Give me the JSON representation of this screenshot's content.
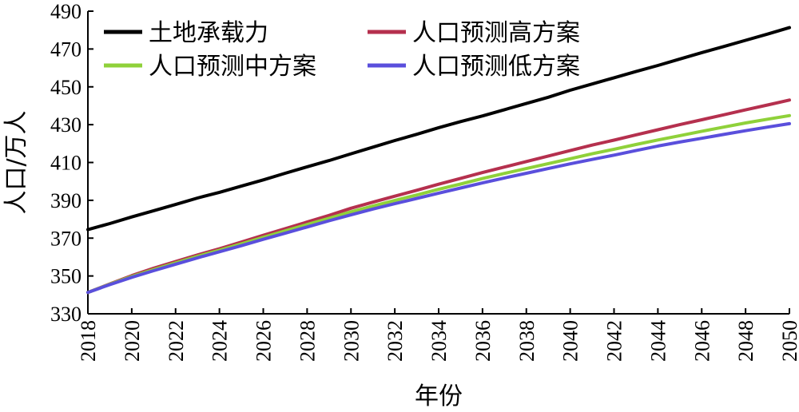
{
  "chart_data": {
    "type": "line",
    "title": "",
    "xlabel": "年份",
    "ylabel": "人口/万人",
    "xlim": [
      2018,
      2050
    ],
    "ylim": [
      330,
      490
    ],
    "yticks": [
      330,
      350,
      370,
      390,
      410,
      430,
      450,
      470,
      490
    ],
    "xticks": [
      2018,
      2020,
      2022,
      2024,
      2026,
      2028,
      2030,
      2032,
      2034,
      2036,
      2038,
      2040,
      2042,
      2044,
      2046,
      2048,
      2050
    ],
    "grid": false,
    "legend_position": "top",
    "x": [
      2018,
      2019,
      2020,
      2021,
      2022,
      2023,
      2024,
      2025,
      2026,
      2027,
      2028,
      2029,
      2030,
      2031,
      2032,
      2033,
      2034,
      2035,
      2036,
      2037,
      2038,
      2039,
      2040,
      2041,
      2042,
      2043,
      2044,
      2045,
      2046,
      2047,
      2048,
      2049,
      2050
    ],
    "series": [
      {
        "name": "土地承载力",
        "color": "#000000",
        "values": [
          374.5,
          377.7,
          381.2,
          384.5,
          387.8,
          391.2,
          394.2,
          397.5,
          400.8,
          404.3,
          407.7,
          411.0,
          414.6,
          418.1,
          421.6,
          424.9,
          428.4,
          431.6,
          434.6,
          437.9,
          441.2,
          444.5,
          448.2,
          451.5,
          454.8,
          458.1,
          461.3,
          464.7,
          468.1,
          471.3,
          474.6,
          477.9,
          481.3
        ]
      },
      {
        "name": "人口预测高方案",
        "color": "#b5304e",
        "values": [
          341.3,
          345.8,
          350.2,
          354.1,
          357.6,
          361.1,
          364.4,
          367.9,
          371.5,
          375.0,
          378.5,
          382.0,
          385.8,
          389.0,
          392.2,
          395.3,
          398.5,
          401.6,
          404.7,
          407.6,
          410.5,
          413.4,
          416.3,
          419.2,
          421.8,
          424.6,
          427.3,
          430.0,
          432.6,
          435.2,
          437.8,
          440.4,
          443.0
        ]
      },
      {
        "name": "人口预测中方案",
        "color": "#8fd13a",
        "values": [
          341.3,
          345.6,
          349.7,
          353.4,
          356.9,
          360.4,
          363.6,
          367.0,
          370.4,
          373.8,
          377.2,
          380.5,
          383.9,
          387.0,
          389.9,
          392.8,
          395.8,
          398.6,
          401.5,
          404.2,
          406.8,
          409.4,
          412.0,
          414.6,
          417.0,
          419.5,
          421.9,
          424.2,
          426.5,
          428.7,
          430.9,
          432.9,
          434.8
        ]
      },
      {
        "name": "人口预测低方案",
        "color": "#5a4fdc",
        "values": [
          341.3,
          345.4,
          349.3,
          352.8,
          356.2,
          359.6,
          362.8,
          366.0,
          369.4,
          372.6,
          375.9,
          379.2,
          382.3,
          385.4,
          388.2,
          391.0,
          393.8,
          396.5,
          399.2,
          401.8,
          404.3,
          406.8,
          409.3,
          411.6,
          413.9,
          416.3,
          418.7,
          420.8,
          422.8,
          424.8,
          426.8,
          428.7,
          430.5
        ]
      }
    ]
  }
}
